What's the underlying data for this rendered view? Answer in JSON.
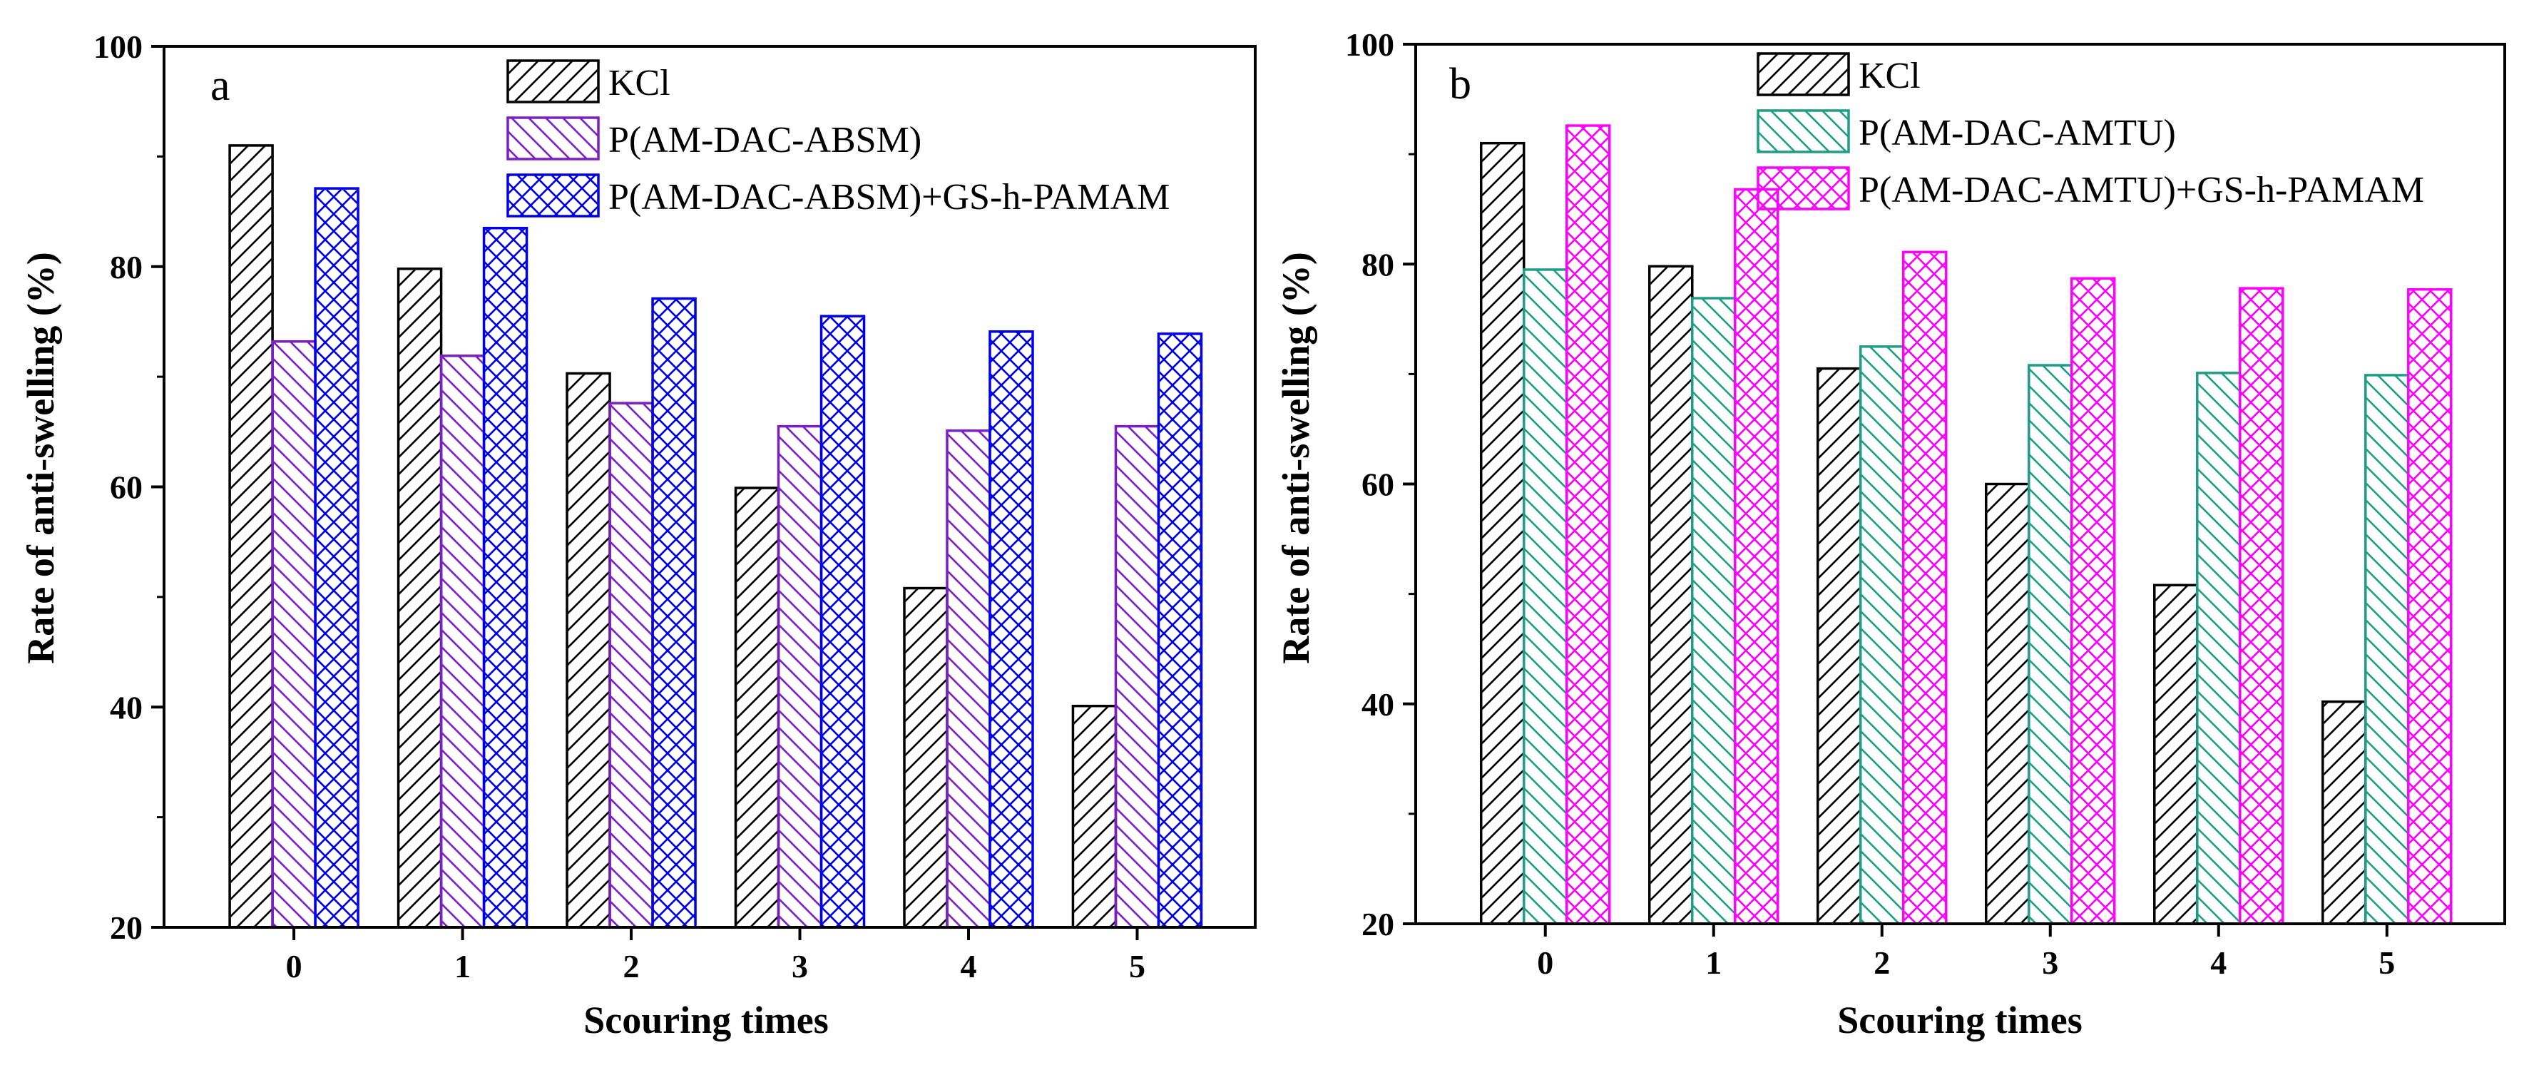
{
  "chart_data": [
    {
      "type": "bar",
      "panel_label": "a",
      "xlabel": "Scouring times",
      "ylabel": "Rate of anti-swelling (%)",
      "categories": [
        "0",
        "1",
        "2",
        "3",
        "4",
        "5"
      ],
      "ylim": [
        20,
        100
      ],
      "yticks": [
        "20",
        "40",
        "60",
        "80",
        "100"
      ],
      "legend_position": "top-right",
      "grid": false,
      "series": [
        {
          "name": "KCl",
          "values": [
            91.0,
            79.8,
            70.3,
            59.9,
            50.8,
            40.1
          ],
          "color": "#000000",
          "pattern": "diagonal-up"
        },
        {
          "name": "P(AM-DAC-ABSM)",
          "values": [
            73.2,
            71.9,
            67.6,
            65.5,
            65.1,
            65.5
          ],
          "color": "#7B1FC4",
          "pattern": "diagonal-down"
        },
        {
          "name": "P(AM-DAC-ABSM)+GS-h-PAMAM",
          "values": [
            87.1,
            83.5,
            77.1,
            75.5,
            74.1,
            73.9
          ],
          "color": "#0000E6",
          "pattern": "crosshatch"
        }
      ]
    },
    {
      "type": "bar",
      "panel_label": "b",
      "xlabel": "Scouring times",
      "ylabel": "Rate of anti-swelling (%)",
      "categories": [
        "0",
        "1",
        "2",
        "3",
        "4",
        "5"
      ],
      "ylim": [
        20,
        100
      ],
      "yticks": [
        "20",
        "40",
        "60",
        "80",
        "100"
      ],
      "legend_position": "top-right",
      "grid": false,
      "series": [
        {
          "name": "KCl",
          "values": [
            91.0,
            79.8,
            70.5,
            60.0,
            50.8,
            40.2
          ],
          "color": "#000000",
          "pattern": "diagonal-up"
        },
        {
          "name": "P(AM-DAC-AMTU)",
          "values": [
            79.5,
            76.9,
            72.5,
            70.8,
            70.1,
            69.9
          ],
          "color": "#1E9E85",
          "pattern": "diagonal-down"
        },
        {
          "name": "P(AM-DAC-AMTU)+GS-h-PAMAM",
          "values": [
            92.6,
            86.8,
            81.1,
            78.7,
            77.8,
            77.7
          ],
          "color": "#FF00FF",
          "pattern": "crosshatch"
        }
      ]
    }
  ]
}
